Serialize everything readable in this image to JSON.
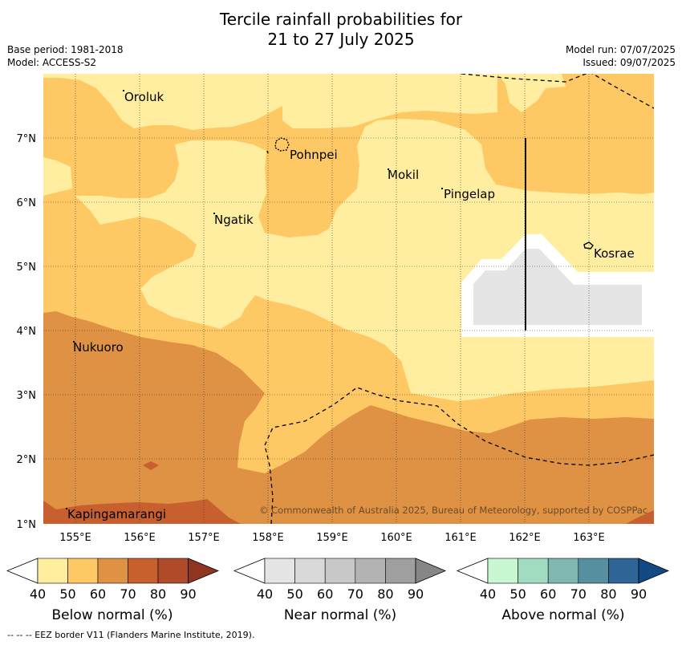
{
  "header": {
    "title_line1": "Tercile rainfall probabilities for",
    "title_line2": "21 to 27 July 2025",
    "base_period": "Base period: 1981-2018",
    "model": "Model: ACCESS-S2",
    "model_run": "Model run: 07/07/2025",
    "issued": "Issued: 09/07/2025"
  },
  "map": {
    "lon_labels": [
      "155°E",
      "156°E",
      "157°E",
      "158°E",
      "159°E",
      "160°E",
      "161°E",
      "162°E",
      "163°E"
    ],
    "lat_labels": [
      "7°N",
      "6°N",
      "5°N",
      "4°N",
      "3°N",
      "2°N",
      "1°N"
    ],
    "places": [
      "Oroluk",
      "Pohnpei",
      "Mokil",
      "Pingelap",
      "Ngatik",
      "Kosrae",
      "Nukuoro",
      "Kapingamarangi"
    ],
    "copyright": "© Commonwealth of Australia 2025, Bureau of Meteorology, supported by COSPPac",
    "colors": {
      "below_40_50": "#ffeda0",
      "below_50_60": "#fec965",
      "below_60_70": "#df9243",
      "below_70_80": "#c85f2f",
      "near_40_50": "#e5e5e5"
    }
  },
  "legends": [
    {
      "title": "Below normal (%)",
      "ticks": [
        "40",
        "50",
        "60",
        "70",
        "80",
        "90"
      ],
      "colors": [
        "#ffeda0",
        "#fec965",
        "#df9243",
        "#c85f2f",
        "#af4b29",
        "#8f3521"
      ]
    },
    {
      "title": "Near normal (%)",
      "ticks": [
        "40",
        "50",
        "60",
        "70",
        "80",
        "90"
      ],
      "colors": [
        "#e5e5e5",
        "#d9d9d9",
        "#c8c8c8",
        "#b3b3b3",
        "#9f9f9f",
        "#868686"
      ]
    },
    {
      "title": "Above normal (%)",
      "ticks": [
        "40",
        "50",
        "60",
        "70",
        "80",
        "90"
      ],
      "colors": [
        "#c9f7d2",
        "#a1dcc0",
        "#80b7b1",
        "#568f9f",
        "#2e6496",
        "#134a83"
      ]
    }
  ],
  "footer": "--  --  -- EEZ border V11 (Flanders Marine Institute, 2019)."
}
